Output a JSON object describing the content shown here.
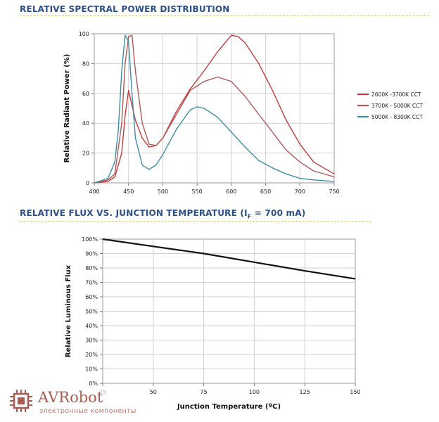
{
  "charts_colors": {
    "series_2600": "#c43a3a",
    "series_3700": "#b15858",
    "series_5000": "#3e8ea5"
  },
  "chart_data": [
    {
      "type": "line",
      "title": "RELATIVE SPECTRAL POWER DISTRIBUTION",
      "xlabel": "",
      "ylabel": "Relative Radiant Power (%)",
      "xlim": [
        400,
        750
      ],
      "ylim": [
        0,
        100
      ],
      "xticks": [
        "400",
        "450",
        "500",
        "550",
        "600",
        "650",
        "700",
        "750"
      ],
      "yticks": [
        "0",
        "20",
        "40",
        "60",
        "80",
        "100"
      ],
      "grid": true,
      "legend_position": "right",
      "series": [
        {
          "name": "2600K -3700K CCT",
          "color": "#c43a3a",
          "x": [
            400,
            420,
            430,
            440,
            445,
            450,
            455,
            460,
            470,
            480,
            490,
            500,
            520,
            540,
            560,
            580,
            600,
            610,
            620,
            640,
            660,
            680,
            700,
            720,
            750
          ],
          "y": [
            0,
            1,
            4,
            20,
            45,
            62,
            52,
            42,
            30,
            24,
            25,
            30,
            48,
            63,
            75,
            88,
            99,
            98,
            94,
            80,
            62,
            42,
            26,
            14,
            6
          ]
        },
        {
          "name": "3700K - 5000K CCT",
          "color": "#b15858",
          "x": [
            400,
            420,
            430,
            440,
            445,
            450,
            455,
            460,
            470,
            480,
            490,
            500,
            520,
            540,
            560,
            580,
            600,
            620,
            640,
            660,
            680,
            700,
            720,
            750
          ],
          "y": [
            0,
            2,
            6,
            40,
            80,
            98,
            99,
            75,
            40,
            26,
            25,
            30,
            46,
            62,
            68,
            71,
            68,
            58,
            46,
            34,
            22,
            14,
            8,
            4
          ]
        },
        {
          "name": "5000K - 8300K CCT",
          "color": "#3e8ea5",
          "x": [
            400,
            420,
            430,
            435,
            440,
            445,
            450,
            455,
            460,
            470,
            480,
            490,
            500,
            520,
            540,
            550,
            560,
            580,
            600,
            620,
            640,
            660,
            680,
            700,
            720,
            750
          ],
          "y": [
            0,
            3,
            14,
            35,
            75,
            99,
            95,
            60,
            30,
            12,
            9,
            12,
            19,
            36,
            49,
            51,
            50,
            44,
            34,
            24,
            15,
            10,
            6,
            3,
            2,
            1
          ]
        }
      ]
    },
    {
      "type": "line",
      "title": "RELATIVE FLUX VS. JUNCTION TEMPERATURE",
      "subtitle_condition": {
        "symbol": "I",
        "subscript": "F",
        "value": "= 700 mA"
      },
      "xlabel": "Junction Temperature (ºC)",
      "ylabel": "Relative Luminous Flux",
      "xlim": [
        25,
        150
      ],
      "ylim": [
        0,
        100
      ],
      "xticks": [
        "25",
        "50",
        "75",
        "100",
        "125",
        "150"
      ],
      "yticks": [
        "0%",
        "10%",
        "20%",
        "30%",
        "40%",
        "50%",
        "60%",
        "70%",
        "80%",
        "90%",
        "100%"
      ],
      "grid": true,
      "series": [
        {
          "x": [
            25,
            50,
            75,
            100,
            125,
            150
          ],
          "y": [
            100,
            95,
            90,
            84,
            78,
            72.5
          ],
          "color": "#111111"
        }
      ]
    }
  ],
  "logo": {
    "brand": "AVRobot",
    "tagline": "электронные компоненты",
    "icon": "chip-icon",
    "color": "#a95c52"
  }
}
